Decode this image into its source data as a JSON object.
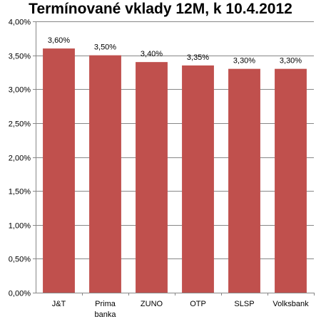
{
  "chart_data": {
    "type": "bar",
    "title": "Termínované vklady 12M, k 10.4.2012",
    "categories": [
      "J&T",
      "Prima banka",
      "ZUNO",
      "OTP",
      "SLSP",
      "Volksbank"
    ],
    "category_lines": [
      [
        "J&T"
      ],
      [
        "Prima",
        "banka"
      ],
      [
        "ZUNO"
      ],
      [
        "OTP"
      ],
      [
        "SLSP"
      ],
      [
        "Volksbank"
      ]
    ],
    "values": [
      3.6,
      3.5,
      3.4,
      3.35,
      3.3,
      3.3
    ],
    "data_labels": [
      "3,60%",
      "3,50%",
      "3,40%",
      "3,35%",
      "3,30%",
      "3,30%"
    ],
    "xlabel": "",
    "ylabel": "",
    "ylim": [
      0,
      4
    ],
    "y_ticks": [
      0,
      0.5,
      1.0,
      1.5,
      2.0,
      2.5,
      3.0,
      3.5,
      4.0
    ],
    "y_tick_labels": [
      "0,00%",
      "0,50%",
      "1,00%",
      "1,50%",
      "2,00%",
      "2,50%",
      "3,00%",
      "3,50%",
      "4,00%"
    ],
    "grid": true,
    "legend": "none",
    "colors": {
      "bar": "#C0504D",
      "grid": "#878787",
      "axis": "#878787"
    }
  }
}
